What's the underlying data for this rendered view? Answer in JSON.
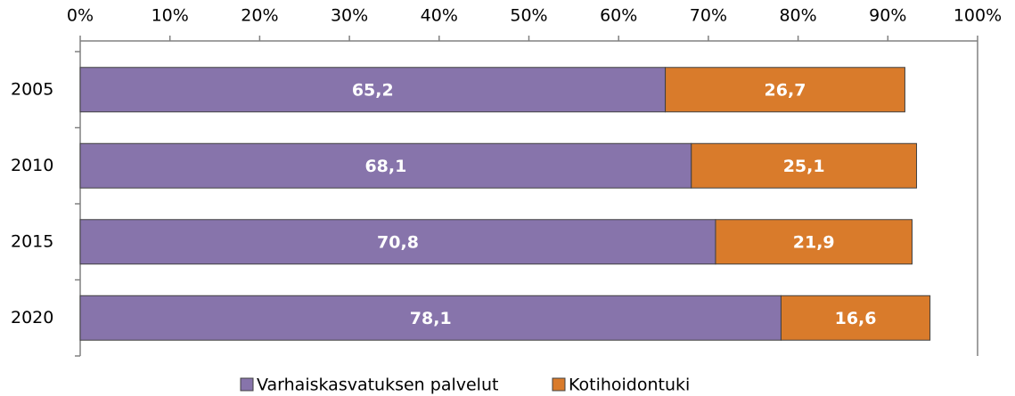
{
  "chart_data": {
    "type": "stacked-barh",
    "categories": [
      "2005",
      "2010",
      "2015",
      "2020"
    ],
    "series": [
      {
        "name": "Varhaiskasvatuksen palvelut",
        "color": "#8774ab",
        "values": [
          65.2,
          68.1,
          70.8,
          78.1
        ],
        "value_labels": [
          "65,2",
          "68,1",
          "70,8",
          "78,1"
        ]
      },
      {
        "name": "Kotihoidontuki",
        "color": "#d97b2b",
        "values": [
          26.7,
          25.1,
          21.9,
          16.6
        ],
        "value_labels": [
          "26,7",
          "25,1",
          "21,9",
          "16,6"
        ]
      }
    ],
    "xlim": [
      0,
      100
    ],
    "xticks": [
      {
        "value": 0,
        "label": "0%"
      },
      {
        "value": 10,
        "label": "10%"
      },
      {
        "value": 20,
        "label": "20%"
      },
      {
        "value": 30,
        "label": "30%"
      },
      {
        "value": 40,
        "label": "40%"
      },
      {
        "value": 50,
        "label": "50%"
      },
      {
        "value": 60,
        "label": "60%"
      },
      {
        "value": 70,
        "label": "70%"
      },
      {
        "value": 80,
        "label": "80%"
      },
      {
        "value": 90,
        "label": "90%"
      },
      {
        "value": 100,
        "label": "100%"
      }
    ],
    "legend": "bottom"
  }
}
